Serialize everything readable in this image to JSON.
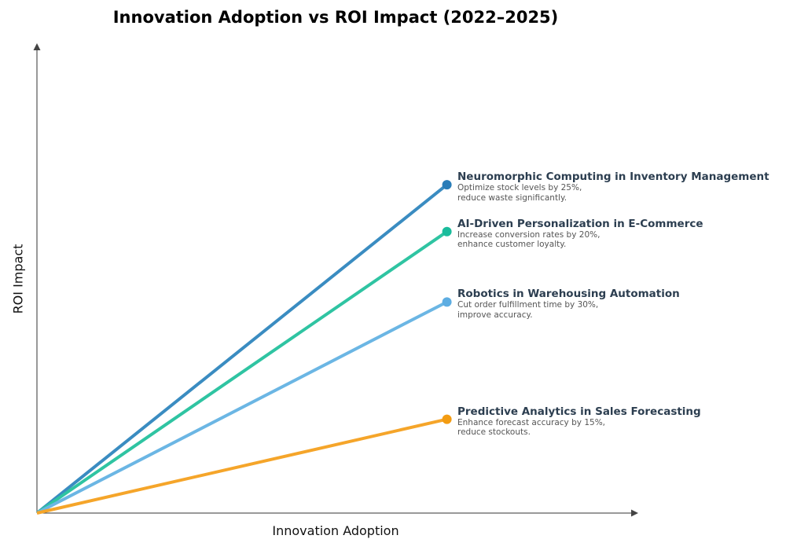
{
  "chart_data": {
    "type": "line",
    "title": "Innovation Adoption vs ROI Impact (2022–2025)",
    "xlabel": "Innovation Adoption",
    "ylabel": "ROI Impact",
    "xlim": [
      0,
      1.1
    ],
    "ylim": [
      0,
      1
    ],
    "grid": false,
    "legend": "none",
    "series": [
      {
        "name": "Neuromorphic Computing in Inventory Management",
        "description": "Optimize stock levels by 25%,\nreduce waste significantly.",
        "x": [
          0,
          0.75
        ],
        "y": [
          0,
          0.7
        ],
        "color": "#3a8cc1",
        "marker_color": "#2a7db8"
      },
      {
        "name": "AI-Driven Personalization in E-Commerce",
        "description": "Increase conversion rates by 20%,\nenhance customer loyalty.",
        "x": [
          0,
          0.75
        ],
        "y": [
          0,
          0.6
        ],
        "color": "#2fc4a2",
        "marker_color": "#1abc9c"
      },
      {
        "name": "Robotics in Warehousing Automation",
        "description": "Cut order fulfillment time by 30%,\nimprove accuracy.",
        "x": [
          0,
          0.75
        ],
        "y": [
          0,
          0.45
        ],
        "color": "#6bb6e4",
        "marker_color": "#5dade2"
      },
      {
        "name": "Predictive Analytics in Sales Forecasting",
        "description": "Enhance forecast accuracy by 15%,\nreduce stockouts.",
        "x": [
          0,
          0.75
        ],
        "y": [
          0,
          0.2
        ],
        "color": "#f5a52a",
        "marker_color": "#f39c12"
      }
    ]
  }
}
